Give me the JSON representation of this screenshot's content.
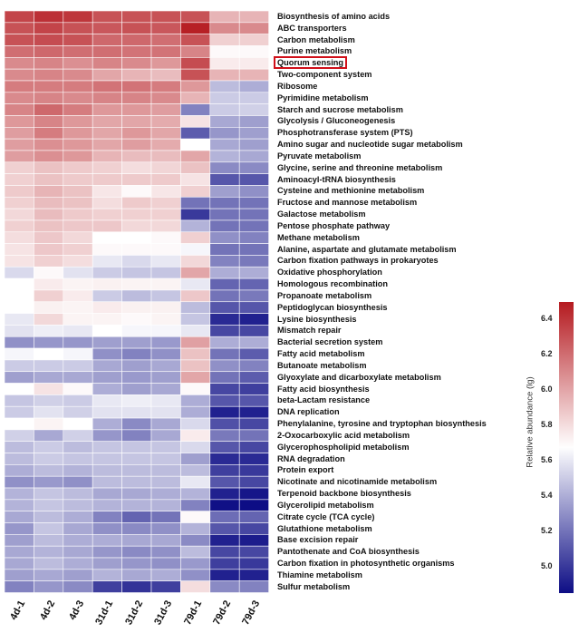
{
  "chart_data": {
    "type": "heatmap",
    "columns": [
      "4d-1",
      "4d-2",
      "4d-3",
      "31d-1",
      "31d-2",
      "31d-3",
      "79d-1",
      "79d-2",
      "79d-3"
    ],
    "rows": [
      "Biosynthesis of amino acids",
      "ABC transporters",
      "Carbon metabolism",
      "Purine metabolism",
      "Quorum sensing",
      "Two-component system",
      "Ribosome",
      "Pyrimidine metabolism",
      "Starch and sucrose metabolism",
      "Glycolysis / Gluconeogenesis",
      "Phosphotransferase system (PTS)",
      "Amino sugar and nucleotide sugar metabolism",
      "Pyruvate metabolism",
      "Glycine, serine and threonine metabolism",
      "Aminoacyl-tRNA biosynthesis",
      "Cysteine and methionine metabolism",
      "Fructose and mannose metabolism",
      "Galactose metabolism",
      "Pentose phosphate pathway",
      "Methane metabolism",
      "Alanine, aspartate and glutamate metabolism",
      "Carbon fixation pathways in prokaryotes",
      "Oxidative phosphorylation",
      "Homologous recombination",
      "Propanoate metabolism",
      "Peptidoglycan biosynthesis",
      "Lysine biosynthesis",
      "Mismatch repair",
      "Bacterial secretion system",
      "Fatty acid metabolism",
      "Butanoate metabolism",
      "Glyoxylate and dicarboxylate metabolism",
      "Fatty acid biosynthesis",
      "beta-Lactam resistance",
      "DNA replication",
      "Phenylalanine, tyrosine and tryptophan biosynthesis",
      "2-Oxocarboxylic acid metabolism",
      "Glycerophospholipid metabolism",
      "RNA degradation",
      "Protein export",
      "Nicotinate and nicotinamide metabolism",
      "Terpenoid backbone biosynthesis",
      "Glycerolipid metabolism",
      "Citrate cycle (TCA cycle)",
      "Glutathione metabolism",
      "Base excision repair",
      "Pantothenate and CoA biosynthesis",
      "Carbon fixation in photosynthetic organisms",
      "Thiamine metabolism",
      "Sulfur metabolism"
    ],
    "highlighted_row": "Quorum sensing",
    "values": [
      [
        6.35,
        6.42,
        6.4,
        6.3,
        6.3,
        6.3,
        6.3,
        5.95,
        5.95
      ],
      [
        6.3,
        6.35,
        6.3,
        6.28,
        6.3,
        6.28,
        6.48,
        6.1,
        6.1
      ],
      [
        6.3,
        6.32,
        6.3,
        6.22,
        6.22,
        6.2,
        6.3,
        5.85,
        5.85
      ],
      [
        6.2,
        6.22,
        6.2,
        6.2,
        6.18,
        6.18,
        6.12,
        5.7,
        5.7
      ],
      [
        6.1,
        6.12,
        6.08,
        6.12,
        6.1,
        6.05,
        6.32,
        5.75,
        5.75
      ],
      [
        6.1,
        6.12,
        6.1,
        6.0,
        5.95,
        5.92,
        6.3,
        5.95,
        5.95
      ],
      [
        6.15,
        6.15,
        6.15,
        6.18,
        6.18,
        6.15,
        6.05,
        5.45,
        5.4
      ],
      [
        6.1,
        6.12,
        6.1,
        6.12,
        6.12,
        6.1,
        5.95,
        5.5,
        5.5
      ],
      [
        6.12,
        6.22,
        6.15,
        6.05,
        6.05,
        6.03,
        5.25,
        5.5,
        5.52
      ],
      [
        6.05,
        6.12,
        6.05,
        6.0,
        6.0,
        5.98,
        5.78,
        5.38,
        5.35
      ],
      [
        6.03,
        6.15,
        6.05,
        6.0,
        6.05,
        6.0,
        5.12,
        5.32,
        5.35
      ],
      [
        6.03,
        6.08,
        6.05,
        6.0,
        6.03,
        5.98,
        5.68,
        5.38,
        5.35
      ],
      [
        6.03,
        6.08,
        6.05,
        5.95,
        5.92,
        5.92,
        6.0,
        5.42,
        5.38
      ],
      [
        5.85,
        5.9,
        5.87,
        5.85,
        5.8,
        5.83,
        5.9,
        5.28,
        5.28
      ],
      [
        5.85,
        5.9,
        5.87,
        5.87,
        5.87,
        5.87,
        5.78,
        5.1,
        5.1
      ],
      [
        5.87,
        5.95,
        5.9,
        5.77,
        5.7,
        5.77,
        5.85,
        5.35,
        5.3
      ],
      [
        5.85,
        5.92,
        5.9,
        5.8,
        5.87,
        5.85,
        5.2,
        5.2,
        5.2
      ],
      [
        5.82,
        5.92,
        5.87,
        5.85,
        5.85,
        5.85,
        5.0,
        5.2,
        5.2
      ],
      [
        5.85,
        5.9,
        5.88,
        5.88,
        5.82,
        5.82,
        5.42,
        5.2,
        5.2
      ],
      [
        5.8,
        5.88,
        5.82,
        5.68,
        5.68,
        5.7,
        5.85,
        5.3,
        5.25
      ],
      [
        5.78,
        5.88,
        5.85,
        5.7,
        5.7,
        5.7,
        5.65,
        5.2,
        5.2
      ],
      [
        5.78,
        5.85,
        5.8,
        5.6,
        5.55,
        5.6,
        5.82,
        5.25,
        5.22
      ],
      [
        5.55,
        5.7,
        5.58,
        5.5,
        5.48,
        5.48,
        6.0,
        5.4,
        5.4
      ],
      [
        5.68,
        5.75,
        5.72,
        5.73,
        5.72,
        5.72,
        5.6,
        5.15,
        5.15
      ],
      [
        5.68,
        5.85,
        5.75,
        5.5,
        5.45,
        5.48,
        5.88,
        5.2,
        5.22
      ],
      [
        5.68,
        5.73,
        5.72,
        5.75,
        5.73,
        5.73,
        5.45,
        5.1,
        5.1
      ],
      [
        5.6,
        5.82,
        5.72,
        5.72,
        5.7,
        5.72,
        5.48,
        4.95,
        4.92
      ],
      [
        5.58,
        5.62,
        5.6,
        5.68,
        5.65,
        5.65,
        5.6,
        5.05,
        5.05
      ],
      [
        5.3,
        5.32,
        5.32,
        5.35,
        5.35,
        5.33,
        6.02,
        5.4,
        5.4
      ],
      [
        5.65,
        5.68,
        5.65,
        5.3,
        5.25,
        5.3,
        5.9,
        5.2,
        5.12
      ],
      [
        5.5,
        5.5,
        5.5,
        5.38,
        5.35,
        5.38,
        5.9,
        5.3,
        5.25
      ],
      [
        5.35,
        5.38,
        5.38,
        5.35,
        5.33,
        5.35,
        6.0,
        5.2,
        5.12
      ],
      [
        5.68,
        5.78,
        5.7,
        5.4,
        5.35,
        5.38,
        5.7,
        5.05,
        5.02
      ],
      [
        5.48,
        5.52,
        5.5,
        5.6,
        5.62,
        5.6,
        5.4,
        5.1,
        5.1
      ],
      [
        5.5,
        5.58,
        5.52,
        5.58,
        5.58,
        5.58,
        5.4,
        4.92,
        4.92
      ],
      [
        5.68,
        5.72,
        5.68,
        5.4,
        5.28,
        5.38,
        5.55,
        5.08,
        5.05
      ],
      [
        5.52,
        5.38,
        5.52,
        5.32,
        5.25,
        5.38,
        5.75,
        5.22,
        5.2
      ],
      [
        5.45,
        5.5,
        5.45,
        5.48,
        5.48,
        5.48,
        5.55,
        5.1,
        5.05
      ],
      [
        5.45,
        5.5,
        5.48,
        5.48,
        5.48,
        5.48,
        5.35,
        4.95,
        4.95
      ],
      [
        5.4,
        5.45,
        5.42,
        5.45,
        5.45,
        5.45,
        5.45,
        5.02,
        5.0
      ],
      [
        5.3,
        5.33,
        5.3,
        5.45,
        5.45,
        5.45,
        5.6,
        5.1,
        5.05
      ],
      [
        5.42,
        5.48,
        5.45,
        5.38,
        5.38,
        5.4,
        5.42,
        4.92,
        4.88
      ],
      [
        5.42,
        5.48,
        5.45,
        5.42,
        5.42,
        5.42,
        5.25,
        4.86,
        4.85
      ],
      [
        5.38,
        5.45,
        5.4,
        5.25,
        5.15,
        5.2,
        5.7,
        5.18,
        5.15
      ],
      [
        5.32,
        5.48,
        5.38,
        5.3,
        5.28,
        5.3,
        5.42,
        5.1,
        5.05
      ],
      [
        5.35,
        5.45,
        5.4,
        5.4,
        5.38,
        5.38,
        5.28,
        4.92,
        4.9
      ],
      [
        5.38,
        5.42,
        5.38,
        5.32,
        5.28,
        5.3,
        5.45,
        5.05,
        5.05
      ],
      [
        5.38,
        5.45,
        5.4,
        5.35,
        5.32,
        5.3,
        5.33,
        5.02,
        5.0
      ],
      [
        5.35,
        5.38,
        5.35,
        5.42,
        5.38,
        5.4,
        5.3,
        4.92,
        4.92
      ],
      [
        5.25,
        5.32,
        5.28,
        5.02,
        4.98,
        5.02,
        5.8,
        5.28,
        5.25
      ]
    ],
    "colorbar": {
      "label": "Relative abundance (lg)",
      "range": [
        4.85,
        6.5
      ],
      "ticks": [
        "6.4",
        "6.2",
        "6.0",
        "5.8",
        "5.6",
        "5.4",
        "5.2",
        "5.0"
      ],
      "colors": {
        "low": "#0d0d85",
        "mid": "#ffffff",
        "high": "#b51a20"
      },
      "mid_value": 5.68
    }
  }
}
